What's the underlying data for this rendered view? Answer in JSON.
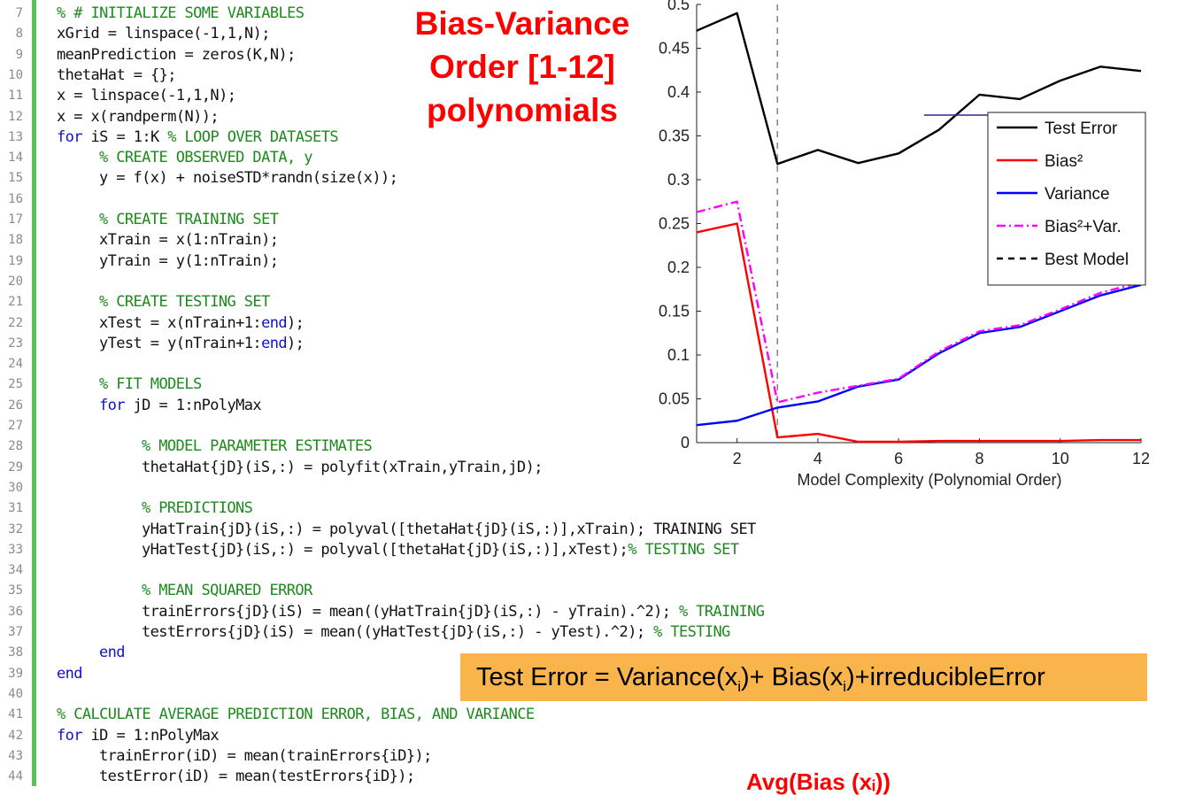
{
  "code_lines": [
    {
      "n": "7",
      "indent": 0,
      "parts": [
        {
          "t": "cm",
          "s": "% # INITIALIZE SOME VARIABLES"
        }
      ]
    },
    {
      "n": "8",
      "indent": 0,
      "parts": [
        {
          "t": "n",
          "s": "xGrid = linspace(-1,1,N);"
        }
      ]
    },
    {
      "n": "9",
      "indent": 0,
      "parts": [
        {
          "t": "n",
          "s": "meanPrediction = zeros(K,N);"
        }
      ]
    },
    {
      "n": "10",
      "indent": 0,
      "parts": [
        {
          "t": "n",
          "s": "thetaHat = {};"
        }
      ]
    },
    {
      "n": "11",
      "indent": 0,
      "parts": [
        {
          "t": "n",
          "s": "x = linspace(-1,1,N);"
        }
      ]
    },
    {
      "n": "12",
      "indent": 0,
      "parts": [
        {
          "t": "n",
          "s": "x = x(randperm(N));"
        }
      ]
    },
    {
      "n": "13",
      "indent": 0,
      "parts": [
        {
          "t": "kw",
          "s": "for"
        },
        {
          "t": "n",
          "s": " iS = 1:K "
        },
        {
          "t": "cm",
          "s": "% LOOP OVER DATASETS"
        }
      ]
    },
    {
      "n": "14",
      "indent": 1,
      "parts": [
        {
          "t": "cm",
          "s": "% CREATE OBSERVED DATA, y"
        }
      ]
    },
    {
      "n": "15",
      "indent": 1,
      "parts": [
        {
          "t": "n",
          "s": "y = f(x) + noiseSTD*randn(size(x));"
        }
      ]
    },
    {
      "n": "16",
      "indent": 0,
      "parts": []
    },
    {
      "n": "17",
      "indent": 1,
      "parts": [
        {
          "t": "cm",
          "s": "% CREATE TRAINING SET"
        }
      ]
    },
    {
      "n": "18",
      "indent": 1,
      "parts": [
        {
          "t": "n",
          "s": "xTrain = x(1:nTrain);"
        }
      ]
    },
    {
      "n": "19",
      "indent": 1,
      "parts": [
        {
          "t": "n",
          "s": "yTrain = y(1:nTrain);"
        }
      ]
    },
    {
      "n": "20",
      "indent": 0,
      "parts": []
    },
    {
      "n": "21",
      "indent": 1,
      "parts": [
        {
          "t": "cm",
          "s": "% CREATE TESTING SET"
        }
      ]
    },
    {
      "n": "22",
      "indent": 1,
      "parts": [
        {
          "t": "n",
          "s": "xTest = x(nTrain+1:"
        },
        {
          "t": "kw",
          "s": "end"
        },
        {
          "t": "n",
          "s": ");"
        }
      ]
    },
    {
      "n": "23",
      "indent": 1,
      "parts": [
        {
          "t": "n",
          "s": "yTest = y(nTrain+1:"
        },
        {
          "t": "kw",
          "s": "end"
        },
        {
          "t": "n",
          "s": ");"
        }
      ]
    },
    {
      "n": "24",
      "indent": 0,
      "parts": []
    },
    {
      "n": "25",
      "indent": 1,
      "parts": [
        {
          "t": "cm",
          "s": "% FIT MODELS"
        }
      ]
    },
    {
      "n": "26",
      "indent": 1,
      "parts": [
        {
          "t": "kw",
          "s": "for"
        },
        {
          "t": "n",
          "s": " jD = 1:nPolyMax"
        }
      ]
    },
    {
      "n": "27",
      "indent": 0,
      "parts": []
    },
    {
      "n": "28",
      "indent": 2,
      "parts": [
        {
          "t": "cm",
          "s": "% MODEL PARAMETER ESTIMATES"
        }
      ]
    },
    {
      "n": "29",
      "indent": 2,
      "parts": [
        {
          "t": "n",
          "s": "thetaHat{jD}(iS,:) = polyfit(xTrain,yTrain,jD);"
        }
      ]
    },
    {
      "n": "30",
      "indent": 0,
      "parts": []
    },
    {
      "n": "31",
      "indent": 2,
      "parts": [
        {
          "t": "cm",
          "s": "% PREDICTIONS"
        }
      ]
    },
    {
      "n": "32",
      "indent": 2,
      "parts": [
        {
          "t": "n",
          "s": "yHatTrain{jD}(iS,:) = polyval([thetaHat{jD}(iS,:)],xTrain); TRAINING SET"
        }
      ]
    },
    {
      "n": "33",
      "indent": 2,
      "parts": [
        {
          "t": "n",
          "s": "yHatTest{jD}(iS,:) = polyval([thetaHat{jD}(iS,:)],xTest);"
        },
        {
          "t": "cm",
          "s": "% TESTING SET"
        }
      ]
    },
    {
      "n": "34",
      "indent": 0,
      "parts": []
    },
    {
      "n": "35",
      "indent": 2,
      "parts": [
        {
          "t": "cm",
          "s": "% MEAN SQUARED ERROR"
        }
      ]
    },
    {
      "n": "36",
      "indent": 2,
      "parts": [
        {
          "t": "n",
          "s": "trainErrors{jD}(iS) = mean((yHatTrain{jD}(iS,:) - yTrain).^2); "
        },
        {
          "t": "cm",
          "s": "% TRAINING"
        }
      ]
    },
    {
      "n": "37",
      "indent": 2,
      "parts": [
        {
          "t": "n",
          "s": "testErrors{jD}(iS) = mean((yHatTest{jD}(iS,:) - yTest).^2); "
        },
        {
          "t": "cm",
          "s": "% TESTING"
        }
      ]
    },
    {
      "n": "38",
      "indent": 1,
      "parts": [
        {
          "t": "kw",
          "s": "end"
        }
      ]
    },
    {
      "n": "39",
      "indent": 0,
      "parts": [
        {
          "t": "kw",
          "s": "end"
        }
      ]
    },
    {
      "n": "40",
      "indent": 0,
      "parts": []
    },
    {
      "n": "41",
      "indent": 0,
      "parts": [
        {
          "t": "cm",
          "s": "% CALCULATE AVERAGE PREDICTION ERROR, BIAS, AND VARIANCE"
        }
      ]
    },
    {
      "n": "42",
      "indent": 0,
      "parts": [
        {
          "t": "kw",
          "s": "for"
        },
        {
          "t": "n",
          "s": " iD = 1:nPolyMax"
        }
      ]
    },
    {
      "n": "43",
      "indent": 1,
      "parts": [
        {
          "t": "n",
          "s": "trainError(iD) = mean(trainErrors{iD});"
        }
      ]
    },
    {
      "n": "44",
      "indent": 1,
      "parts": [
        {
          "t": "n",
          "s": "testError(iD) = mean(testErrors{iD});"
        }
      ]
    }
  ],
  "title_lines": [
    "Bias-Variance",
    "Order [1-12]",
    "polynomials"
  ],
  "formula": {
    "prefix": "Test Error = Variance(x",
    "sub1": "i",
    "mid": ")+ Bias(x",
    "sub2": "i",
    "suffix": ")+irreducibleError"
  },
  "bottom_note": "Avg(Bias (xᵢ))",
  "colors": {
    "accent_bar": "#5cc35c",
    "formula_bg": "#f9b44c",
    "title": "#ff0000",
    "keyword": "#1010c8",
    "comment": "#1e8a1e"
  },
  "chart_data": {
    "type": "line",
    "xlabel": "Model Complexity (Polynomial Order)",
    "ylabel": "",
    "xlim": [
      1,
      12
    ],
    "ylim": [
      0,
      0.5
    ],
    "xticks": [
      "2",
      "4",
      "6",
      "8",
      "10",
      "12"
    ],
    "yticks": [
      "0",
      "0.05",
      "0.1",
      "0.15",
      "0.2",
      "0.25",
      "0.3",
      "0.35",
      "0.4",
      "0.45",
      "0.5"
    ],
    "x": [
      1,
      2,
      3,
      4,
      5,
      6,
      7,
      8,
      9,
      10,
      11,
      12
    ],
    "series": [
      {
        "name": "Test Error",
        "color": "#000000",
        "dash": "solid",
        "values": [
          0.47,
          0.49,
          0.318,
          0.334,
          0.319,
          0.33,
          0.357,
          0.397,
          0.392,
          0.413,
          0.429,
          0.424
        ]
      },
      {
        "name": "Bias²",
        "color": "#ff0000",
        "dash": "solid",
        "values": [
          0.24,
          0.25,
          0.006,
          0.01,
          0.001,
          0.001,
          0.002,
          0.002,
          0.002,
          0.002,
          0.003,
          0.003
        ]
      },
      {
        "name": "Variance",
        "color": "#0000ff",
        "dash": "solid",
        "values": [
          0.02,
          0.025,
          0.04,
          0.047,
          0.064,
          0.072,
          0.102,
          0.125,
          0.132,
          0.15,
          0.168,
          0.18
        ]
      },
      {
        "name": "Bias²+Var.",
        "color": "#ff00ff",
        "dash": "dashdot",
        "values": [
          0.263,
          0.275,
          0.046,
          0.057,
          0.065,
          0.073,
          0.104,
          0.127,
          0.134,
          0.152,
          0.171,
          0.183
        ]
      }
    ],
    "best_model": {
      "name": "Best Model",
      "x": 3,
      "color": "#888888",
      "dash": "dashed"
    },
    "legend_position": "right"
  }
}
